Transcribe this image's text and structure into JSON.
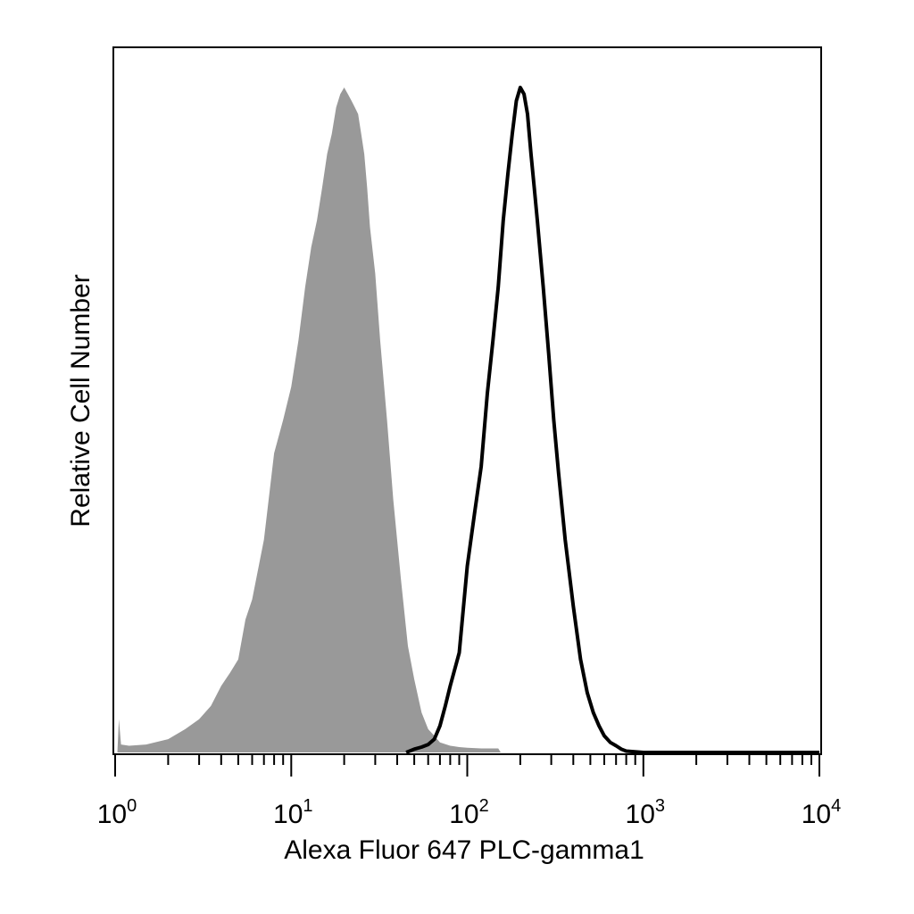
{
  "chart_data": {
    "type": "area",
    "title": "",
    "xlabel": "Alexa Fluor 647 PLC-gamma1",
    "ylabel": "Relative Cell Number",
    "xscale": "log",
    "xlim": [
      1,
      10000
    ],
    "ylim": [
      0,
      1
    ],
    "grid": false,
    "legend": "none",
    "xticks": [
      {
        "base": "10",
        "exp": "0",
        "value": 1
      },
      {
        "base": "10",
        "exp": "1",
        "value": 10
      },
      {
        "base": "10",
        "exp": "2",
        "value": 100
      },
      {
        "base": "10",
        "exp": "3",
        "value": 1000
      },
      {
        "base": "10",
        "exp": "4",
        "value": 10000
      }
    ],
    "series": [
      {
        "style": "filled",
        "color": "#999999",
        "x": [
          1.03,
          1.05,
          1.08,
          1.2,
          1.5,
          2.0,
          2.5,
          3.0,
          3.5,
          4.0,
          4.5,
          5.0,
          5.5,
          6.0,
          7.0,
          8.0,
          9.0,
          10.0,
          11.0,
          12.0,
          13.0,
          14.0,
          15.0,
          16.0,
          17.0,
          18.0,
          19.0,
          20.0,
          21.0,
          22.0,
          23.0,
          24.0,
          25.0,
          26.0,
          27.0,
          28.0,
          30.0,
          32.0,
          35.0,
          38.0,
          42.0,
          46.0,
          50.0,
          55.0,
          60.0,
          65.0,
          70.0,
          80.0,
          90.0,
          100.0,
          120.0,
          150.0,
          155.0
        ],
        "y": [
          0.0,
          0.05,
          0.012,
          0.01,
          0.012,
          0.02,
          0.035,
          0.05,
          0.07,
          0.1,
          0.12,
          0.14,
          0.2,
          0.23,
          0.32,
          0.45,
          0.5,
          0.55,
          0.62,
          0.7,
          0.76,
          0.8,
          0.85,
          0.9,
          0.93,
          0.97,
          0.99,
          1.0,
          0.99,
          0.98,
          0.97,
          0.96,
          0.93,
          0.9,
          0.85,
          0.79,
          0.72,
          0.62,
          0.5,
          0.38,
          0.26,
          0.16,
          0.11,
          0.06,
          0.035,
          0.025,
          0.015,
          0.01,
          0.008,
          0.007,
          0.006,
          0.006,
          0.0
        ]
      },
      {
        "style": "outline",
        "color": "#000000",
        "x": [
          45.0,
          50.0,
          55.0,
          60.0,
          65.0,
          70.0,
          75.0,
          80.0,
          90.0,
          100.0,
          110.0,
          120.0,
          130.0,
          140.0,
          150.0,
          160.0,
          170.0,
          180.0,
          190.0,
          200.0,
          210.0,
          220.0,
          230.0,
          240.0,
          250.0,
          270.0,
          290.0,
          310.0,
          330.0,
          360.0,
          400.0,
          440.0,
          480.0,
          520.0,
          560.0,
          600.0,
          650.0,
          700.0,
          750.0,
          800.0,
          1000.0,
          10000.0
        ],
        "y": [
          0.0,
          0.005,
          0.008,
          0.012,
          0.02,
          0.04,
          0.07,
          0.1,
          0.15,
          0.28,
          0.36,
          0.43,
          0.54,
          0.62,
          0.7,
          0.8,
          0.87,
          0.93,
          0.98,
          1.0,
          0.99,
          0.96,
          0.9,
          0.85,
          0.8,
          0.7,
          0.6,
          0.5,
          0.42,
          0.32,
          0.22,
          0.14,
          0.09,
          0.06,
          0.04,
          0.025,
          0.015,
          0.01,
          0.005,
          0.002,
          0.0,
          0.0
        ]
      }
    ]
  }
}
